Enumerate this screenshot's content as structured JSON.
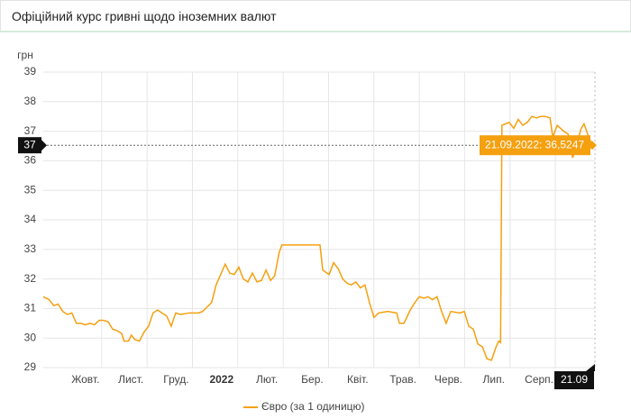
{
  "chart_data": {
    "type": "line",
    "title": "Офіційний курс гривні щодо іноземних валют",
    "y_label": "грн",
    "x": [
      9.07,
      9.2,
      9.3,
      9.4,
      9.5,
      9.6,
      9.7,
      9.8,
      9.9,
      10.0,
      10.1,
      10.2,
      10.3,
      10.4,
      10.5,
      10.6,
      10.7,
      10.8,
      10.85,
      10.95,
      11.01,
      11.09,
      11.19,
      11.29,
      11.39,
      11.49,
      11.59,
      11.69,
      11.79,
      11.89,
      11.99,
      12.09,
      12.29,
      12.49,
      12.58,
      12.68,
      12.78,
      12.88,
      12.98,
      13.08,
      13.18,
      13.28,
      13.38,
      13.48,
      13.58,
      13.68,
      13.78,
      13.88,
      13.98,
      14.08,
      14.17,
      14.27,
      14.33,
      15.17,
      15.23,
      15.37,
      15.47,
      15.57,
      15.67,
      15.77,
      15.86,
      15.96,
      16.06,
      16.16,
      16.26,
      16.36,
      16.46,
      16.66,
      16.86,
      16.92,
      17.02,
      17.16,
      17.26,
      17.36,
      17.46,
      17.55,
      17.65,
      17.75,
      17.85,
      17.95,
      18.05,
      18.25,
      18.35,
      18.45,
      18.55,
      18.65,
      18.75,
      18.85,
      18.95,
      19.05,
      19.11,
      19.15,
      19.18,
      19.34,
      19.44,
      19.54,
      19.64,
      19.74,
      19.84,
      19.94,
      20.04,
      20.14,
      20.24,
      20.3,
      20.4,
      20.54,
      20.64,
      20.74,
      20.83,
      20.93,
      20.99,
      21.07,
      21.17
    ],
    "series": [
      {
        "name": "Євро (за 1 одиницю)",
        "color": "#f5a00f",
        "values": [
          31.4,
          31.3,
          31.1,
          31.15,
          30.9,
          30.8,
          30.85,
          30.5,
          30.5,
          30.45,
          30.5,
          30.45,
          30.6,
          30.6,
          30.55,
          30.3,
          30.25,
          30.15,
          29.9,
          29.9,
          30.1,
          29.95,
          29.9,
          30.2,
          30.4,
          30.85,
          30.95,
          30.85,
          30.75,
          30.4,
          30.85,
          30.8,
          30.85,
          30.85,
          30.9,
          31.05,
          31.2,
          31.8,
          32.15,
          32.5,
          32.2,
          32.15,
          32.4,
          32.0,
          31.9,
          32.2,
          31.9,
          31.95,
          32.3,
          31.95,
          32.1,
          32.9,
          33.15,
          33.15,
          32.3,
          32.15,
          32.55,
          32.35,
          32.0,
          31.85,
          31.8,
          31.9,
          31.7,
          31.8,
          31.2,
          30.7,
          30.85,
          30.9,
          30.85,
          30.5,
          30.5,
          30.95,
          31.2,
          31.4,
          31.35,
          31.4,
          31.3,
          31.4,
          30.9,
          30.5,
          30.9,
          30.85,
          30.9,
          30.4,
          30.3,
          29.8,
          29.7,
          29.3,
          29.25,
          29.7,
          29.9,
          29.85,
          37.2,
          37.3,
          37.1,
          37.4,
          37.2,
          37.3,
          37.5,
          37.45,
          37.5,
          37.5,
          37.45,
          36.8,
          37.2,
          37.0,
          36.9,
          36.1,
          36.6,
          37.1,
          37.25,
          36.9,
          36.5247
        ]
      }
    ],
    "xlim": [
      9.07,
      21.23
    ],
    "xticks": [
      {
        "value": 10,
        "label": "Жовт."
      },
      {
        "value": 11,
        "label": "Лист."
      },
      {
        "value": 12,
        "label": "Груд."
      },
      {
        "value": 13,
        "label": "2022"
      },
      {
        "value": 14,
        "label": "Лют."
      },
      {
        "value": 15,
        "label": "Бер."
      },
      {
        "value": 16,
        "label": "Квіт."
      },
      {
        "value": 17,
        "label": "Трав."
      },
      {
        "value": 18,
        "label": "Черв."
      },
      {
        "value": 19,
        "label": "Лип."
      },
      {
        "value": 20,
        "label": "Серп."
      }
    ],
    "ylim": [
      29,
      39
    ],
    "yticks": [
      29,
      30,
      31,
      32,
      33,
      34,
      35,
      36,
      37,
      38,
      39
    ],
    "grid": true,
    "legend": "bottom",
    "tooltip": "21.09.2022: 36,5247",
    "crosshair_y_label": "37",
    "crosshair_x_label": "21.09"
  }
}
